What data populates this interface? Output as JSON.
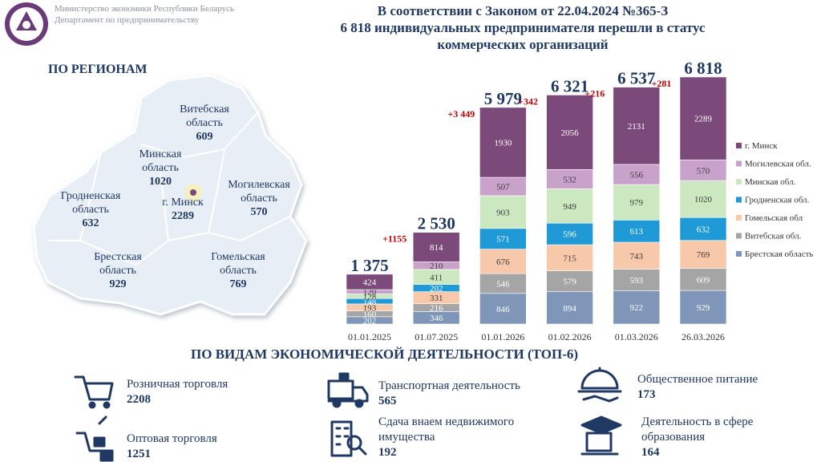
{
  "header": {
    "org": [
      "Министерство экономики Республики Беларусь",
      "Департамент по предпринимательству"
    ],
    "title": [
      "В соответствии с Законом от 22.04.2024 №365-З",
      "6 818 индивидуальных предпринимателя перешли в статус",
      "коммерческих организаций"
    ]
  },
  "regions": {
    "title": "ПО РЕГИОНАМ",
    "items": [
      {
        "name": "Витебская область",
        "value": 609
      },
      {
        "name": "Минская область",
        "value": 1020
      },
      {
        "name": "Гродненская область",
        "value": 632
      },
      {
        "name": "г. Минск",
        "value": 2289
      },
      {
        "name": "Могилевская область",
        "value": 570
      },
      {
        "name": "Брестская область",
        "value": 929
      },
      {
        "name": "Гомельская область",
        "value": 769
      }
    ]
  },
  "chart_data": {
    "type": "stacked-bar",
    "categories": [
      "01.01.2025",
      "01.07.2025",
      "01.01.2026",
      "01.02.2026",
      "01.03.2026",
      "26.03.2026"
    ],
    "series": [
      {
        "name": "Брестская область",
        "color": "#7f96b8",
        "values": [
          202,
          346,
          846,
          894,
          922,
          929
        ]
      },
      {
        "name": "Витебская обл.",
        "color": "#a5a5a5",
        "values": [
          160,
          216,
          546,
          579,
          593,
          609
        ]
      },
      {
        "name": "Гомельская обл",
        "color": "#f8c8aa",
        "values": [
          193,
          331,
          676,
          715,
          743,
          769
        ]
      },
      {
        "name": "Гродненская обл.",
        "color": "#1f9ad6",
        "values": [
          148,
          202,
          571,
          596,
          613,
          632
        ]
      },
      {
        "name": "Минская обл.",
        "color": "#cce8c0",
        "values": [
          128,
          411,
          903,
          949,
          979,
          1020
        ]
      },
      {
        "name": "Могилевская обл.",
        "color": "#c9a2cc",
        "values": [
          120,
          210,
          507,
          532,
          556,
          570
        ]
      },
      {
        "name": "г. Минск",
        "color": "#7c4a7a",
        "values": [
          424,
          814,
          1930,
          2056,
          2131,
          2289
        ]
      }
    ],
    "totals": [
      1375,
      2530,
      5979,
      6321,
      6537,
      6818
    ],
    "total_labels": [
      "1 375",
      "2 530",
      "5 979",
      "6 321",
      "6 537",
      "6 818"
    ],
    "increment_labels": [
      "+1155",
      "+3 449",
      "+342",
      "+216",
      "+281"
    ]
  },
  "activities": {
    "title": "ПО ВИДАМ ЭКОНОМИЧЕСКОЙ ДЕЯТЕЛЬНОСТИ (ТОП-6)",
    "items": [
      {
        "name": "Розничная торговля",
        "value": 2208
      },
      {
        "name": "Транспортная деятельность",
        "value": 565
      },
      {
        "name": "Общественное питание",
        "value": 173
      },
      {
        "name": "Оптовая торговля",
        "value": 1251
      },
      {
        "name": "Сдача внаем недвижимого имущества",
        "value": 192
      },
      {
        "name": "Деятельность в сфере образования",
        "value": 164
      }
    ]
  }
}
